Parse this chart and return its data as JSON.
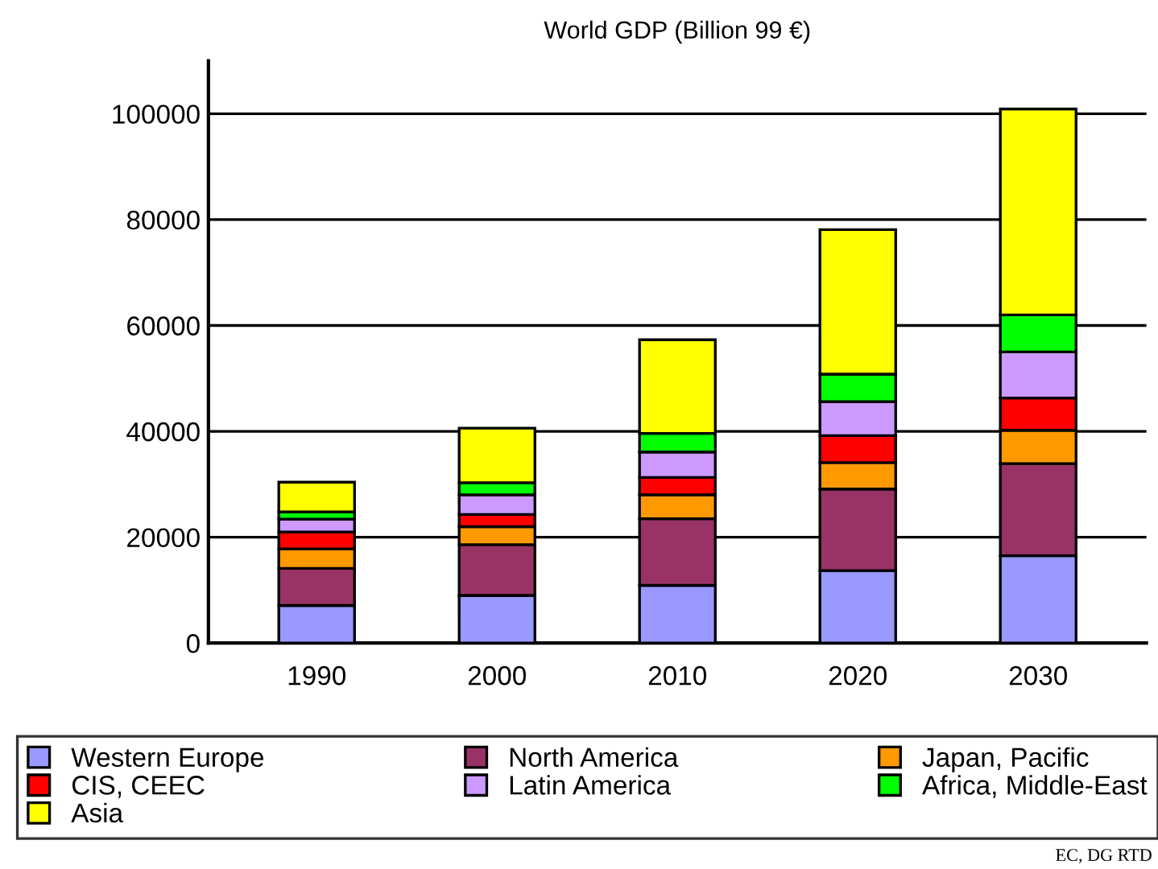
{
  "chart_data": {
    "type": "bar",
    "title": "World GDP (Billion 99 €)",
    "stacked": true,
    "categories": [
      "1990",
      "2000",
      "2010",
      "2020",
      "2030"
    ],
    "series": [
      {
        "name": "Western Europe",
        "color": "#9999ff",
        "values": [
          7100,
          9000,
          10900,
          13700,
          16500
        ]
      },
      {
        "name": "North America",
        "color": "#993366",
        "values": [
          7000,
          9600,
          12600,
          15400,
          17400
        ]
      },
      {
        "name": "Japan, Pacific",
        "color": "#ff9900",
        "values": [
          3700,
          3400,
          4500,
          5000,
          6300
        ]
      },
      {
        "name": "CIS, CEEC",
        "color": "#ff0000",
        "values": [
          3200,
          2300,
          3300,
          5100,
          6100
        ]
      },
      {
        "name": "Latin America",
        "color": "#cc99ff",
        "values": [
          2400,
          3700,
          4800,
          6400,
          8700
        ]
      },
      {
        "name": "Africa, Middle-East",
        "color": "#00ff00",
        "values": [
          1400,
          2300,
          3500,
          5200,
          7000
        ]
      },
      {
        "name": "Asia",
        "color": "#ffff00",
        "values": [
          5600,
          10300,
          17700,
          27300,
          38900
        ]
      }
    ],
    "ylim": [
      0,
      110000
    ],
    "yticks": [
      0,
      20000,
      40000,
      60000,
      80000,
      100000
    ],
    "grid": "y",
    "legend": "bottom",
    "annotations": [
      "EC, DG RTD"
    ]
  }
}
